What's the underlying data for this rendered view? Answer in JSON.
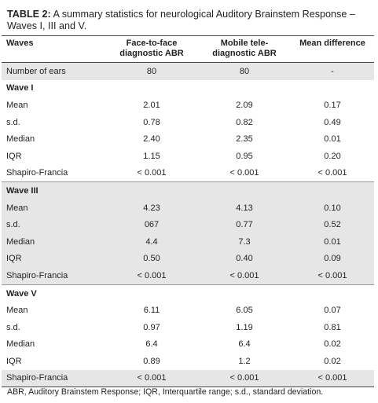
{
  "caption": {
    "label": "TABLE 2:",
    "text": " A summary statistics for neurological Auditory Brainstem Response – Waves I, III and V."
  },
  "headers": {
    "col1": "Waves",
    "col2": "Face-to-face diagnostic ABR",
    "col3": "Mobile tele-diagnostic ABR",
    "col4": "Mean difference"
  },
  "rows": [
    {
      "label": "Number of ears",
      "f2f": "80",
      "mobile": "80",
      "diff": "-"
    },
    {
      "label": "Wave I",
      "f2f": "",
      "mobile": "",
      "diff": ""
    },
    {
      "label": "Mean",
      "f2f": "2.01",
      "mobile": "2.09",
      "diff": "0.17"
    },
    {
      "label": "s.d.",
      "f2f": "0.78",
      "mobile": "0.82",
      "diff": "0.49"
    },
    {
      "label": "Median",
      "f2f": "2.40",
      "mobile": "2.35",
      "diff": "0.01"
    },
    {
      "label": "IQR",
      "f2f": "1.15",
      "mobile": "0.95",
      "diff": "0.20"
    },
    {
      "label": "Shapiro-Francia",
      "f2f": "< 0.001",
      "mobile": "< 0.001",
      "diff": "< 0.001"
    },
    {
      "label": "Wave III",
      "f2f": "",
      "mobile": "",
      "diff": ""
    },
    {
      "label": "Mean",
      "f2f": "4.23",
      "mobile": "4.13",
      "diff": "0.10"
    },
    {
      "label": "s.d.",
      "f2f": "067",
      "mobile": "0.77",
      "diff": "0.52"
    },
    {
      "label": "Median",
      "f2f": "4.4",
      "mobile": "7.3",
      "diff": "0.01"
    },
    {
      "label": "IQR",
      "f2f": "0.50",
      "mobile": "0.40",
      "diff": "0.09"
    },
    {
      "label": "Shapiro-Francia",
      "f2f": "< 0.001",
      "mobile": "< 0.001",
      "diff": "< 0.001"
    },
    {
      "label": "Wave V",
      "f2f": "",
      "mobile": "",
      "diff": ""
    },
    {
      "label": "Mean",
      "f2f": "6.11",
      "mobile": "6.05",
      "diff": "0.07"
    },
    {
      "label": "s.d.",
      "f2f": "0.97",
      "mobile": "1.19",
      "diff": "0.81"
    },
    {
      "label": "Median",
      "f2f": "6.4",
      "mobile": "6.4",
      "diff": "0.02"
    },
    {
      "label": "IQR",
      "f2f": "0.89",
      "mobile": "1.2",
      "diff": "0.02"
    },
    {
      "label": "Shapiro-Francia",
      "f2f": "< 0.001",
      "mobile": "< 0.001",
      "diff": "< 0.001"
    }
  ],
  "footnote": "ABR, Auditory Brainstem Response; IQR, Interquartile range; s.d., standard deviation.",
  "colors": {
    "shade": "#e7e6e6",
    "rule": "#4a4a4a",
    "text": "#231f20"
  }
}
